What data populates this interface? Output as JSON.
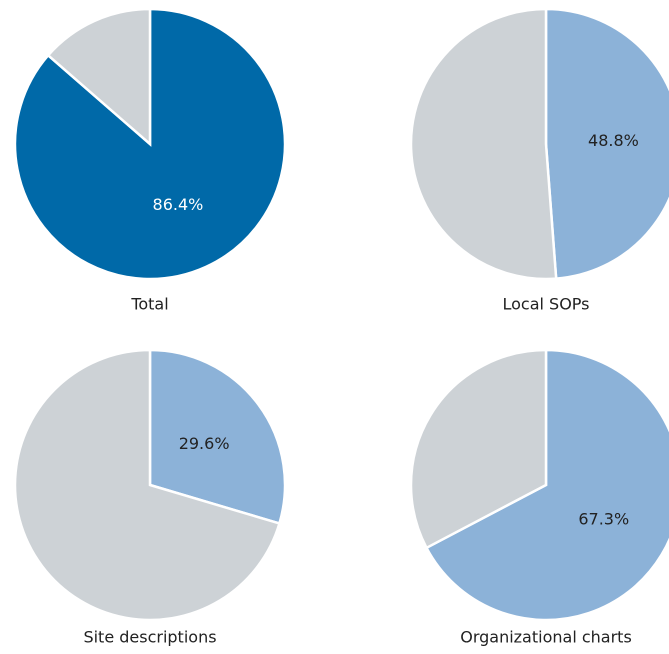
{
  "chart_data": [
    {
      "type": "pie",
      "title": "Total",
      "values": [
        86.4,
        13.6
      ],
      "value_labels": [
        "86.4%",
        null
      ],
      "colors": [
        "#0069a8",
        "#cdd2d6"
      ]
    },
    {
      "type": "pie",
      "title": "Local SOPs",
      "values": [
        48.8,
        51.2
      ],
      "value_labels": [
        "48.8%",
        null
      ],
      "colors": [
        "#8cb2d8",
        "#cdd2d6"
      ]
    },
    {
      "type": "pie",
      "title": "Site descriptions",
      "values": [
        29.6,
        70.4
      ],
      "value_labels": [
        "29.6%",
        null
      ],
      "colors": [
        "#8cb2d8",
        "#cdd2d6"
      ]
    },
    {
      "type": "pie",
      "title": "Organizational charts",
      "values": [
        67.3,
        32.7
      ],
      "value_labels": [
        "67.3%",
        null
      ],
      "colors": [
        "#8cb2d8",
        "#cdd2d6"
      ]
    }
  ]
}
